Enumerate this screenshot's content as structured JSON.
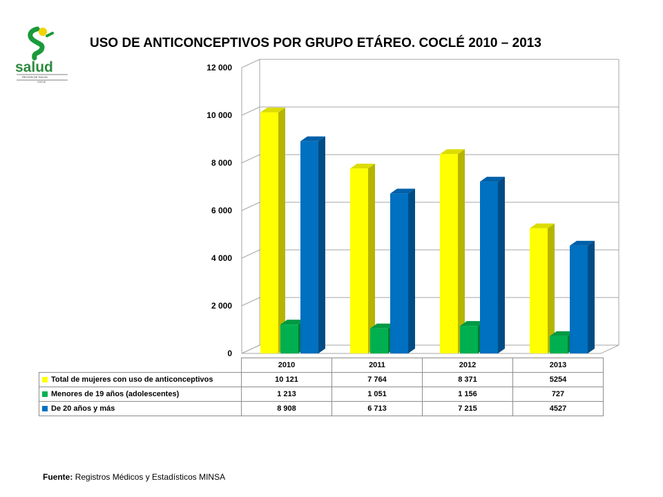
{
  "logo": {
    "text": "salud",
    "subtext_line1": "REGION DE SALUD",
    "subtext_line2": "COCLE"
  },
  "title": "USO DE ANTICONCEPTIVOS POR GRUPO ETÁREO.  COCLÉ 2010 – 2013",
  "source": {
    "label": "Fuente:",
    "text": "Registros Médicos y Estadísticos MINSA"
  },
  "chart_data": {
    "type": "bar",
    "title": "USO DE ANTICONCEPTIVOS POR GRUPO ETÁREO.  COCLÉ 2010 – 2013",
    "xlabel": "",
    "ylabel": "",
    "categories": [
      "2010",
      "2011",
      "2012",
      "2013"
    ],
    "ylim": [
      0,
      12000
    ],
    "yticks": [
      0,
      2000,
      4000,
      6000,
      8000,
      10000,
      12000
    ],
    "ytick_labels": [
      "0",
      "2 000",
      "4 000",
      "6 000",
      "8 000",
      "10 000",
      "12 000"
    ],
    "grid": true,
    "style": "3d-clustered-column",
    "legend": "data-table-below",
    "series": [
      {
        "name": "Total de mujeres con uso de anticonceptivos",
        "values": [
          10121,
          7764,
          8371,
          5254
        ],
        "value_labels": [
          "10 121",
          "7 764",
          "8 371",
          "5254"
        ],
        "color": "#FFFF00",
        "side_color": "#B5B500",
        "top_color": "#DCDC00"
      },
      {
        "name": "Menores de 19 años (adolescentes)",
        "values": [
          1213,
          1051,
          1156,
          727
        ],
        "value_labels": [
          "1 213",
          "1 051",
          "1 156",
          "727"
        ],
        "color": "#00B050",
        "side_color": "#007A36",
        "top_color": "#009944"
      },
      {
        "name": "De 20 años y más",
        "values": [
          8908,
          6713,
          7215,
          4527
        ],
        "value_labels": [
          "8 908",
          "6 713",
          "7 215",
          "4527"
        ],
        "color": "#0070C0",
        "side_color": "#004C85",
        "top_color": "#0060A8"
      }
    ]
  }
}
